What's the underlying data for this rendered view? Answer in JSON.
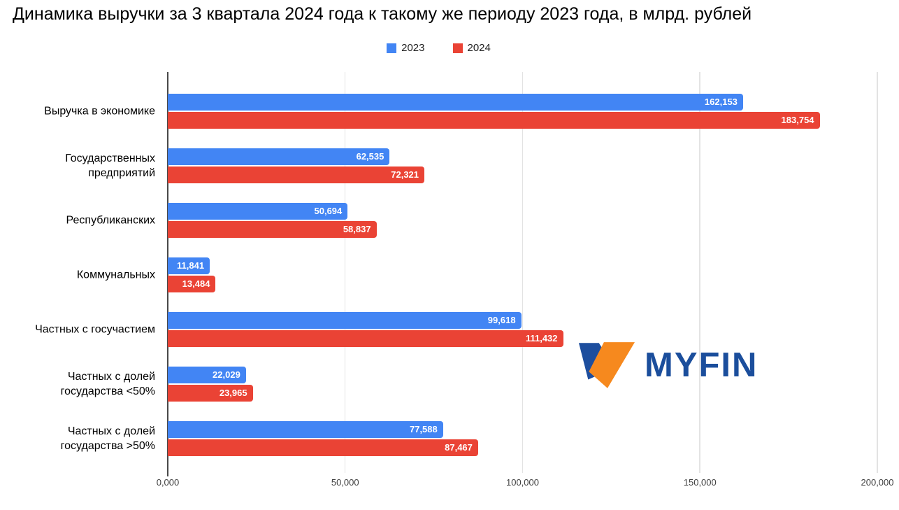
{
  "title": "Динамика выручки за 3 квартала 2024 года к такому же периоду 2023 года, в млрд. рублей",
  "legend": {
    "items": [
      {
        "label": "2023",
        "color": "#4285F4"
      },
      {
        "label": "2024",
        "color": "#EA4335"
      }
    ]
  },
  "logo": {
    "text": "MYFIN",
    "text_color": "#1B4E9C",
    "mark_blue": "#1D4E9E",
    "mark_orange": "#F6891E"
  },
  "chart_data": {
    "type": "bar",
    "orientation": "horizontal",
    "title": "Динамика выручки за 3 квартала 2024 года к такому же периоду 2023 года, в млрд. рублей",
    "categories": [
      "Выручка в экономике",
      "Государственных\nпредприятий",
      "Республиканских",
      "Коммунальных",
      "Частных с госучастием",
      "Частных с долей\nгосударства <50%",
      "Частных с долей\nгосударства >50%"
    ],
    "series": [
      {
        "name": "2023",
        "color": "#4285F4",
        "values": [
          162153,
          62535,
          50694,
          11841,
          99618,
          22029,
          77588
        ],
        "labels": [
          "162,153",
          "62,535",
          "50,694",
          "11,841",
          "99,618",
          "22,029",
          "77,588"
        ]
      },
      {
        "name": "2024",
        "color": "#EA4335",
        "values": [
          183754,
          72321,
          58837,
          13484,
          111432,
          23965,
          87467
        ],
        "labels": [
          "183,754",
          "72,321",
          "58,837",
          "13,484",
          "111,432",
          "23,965",
          "87,467"
        ]
      }
    ],
    "x_axis": {
      "min": 0,
      "max": 200000,
      "tick_values": [
        0,
        50000,
        100000,
        150000,
        200000
      ],
      "tick_labels": [
        "0,000",
        "50,000",
        "100,000",
        "150,000",
        "200,000"
      ]
    },
    "grid": true,
    "legend_position": "top",
    "value_label_position": "inside-end"
  }
}
